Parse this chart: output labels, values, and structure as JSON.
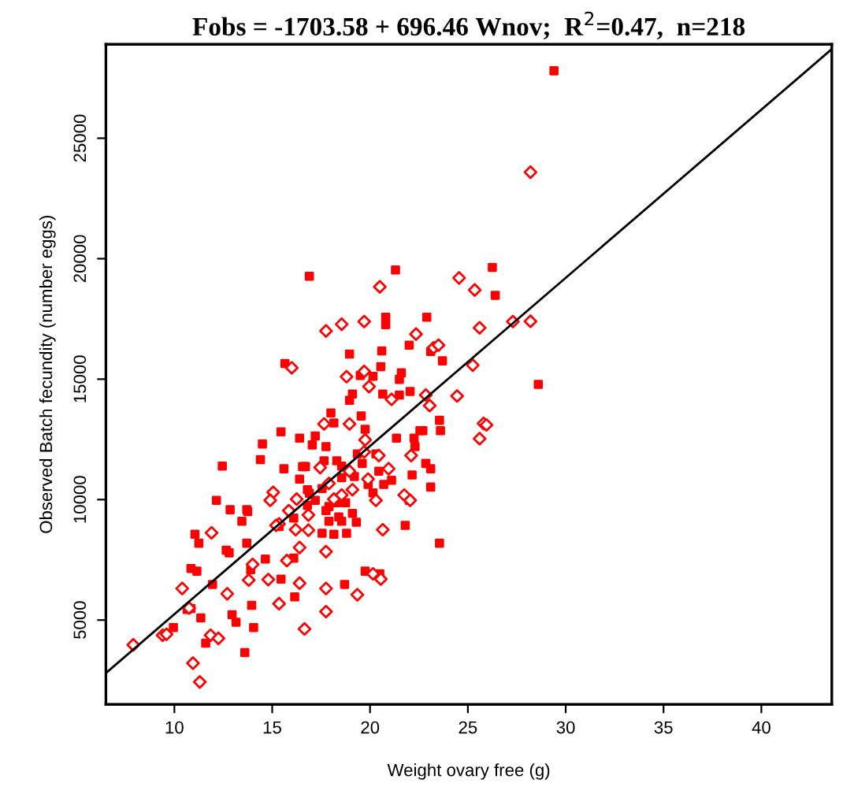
{
  "chart_data": {
    "type": "scatter",
    "title": "Fobs = -1703.58 + 696.46 Wnov;  R$^{2}$=0.47,  n=218",
    "xlabel": "Weight ovary free (g)",
    "ylabel": "Observed Batch fecundity (number eggs)",
    "xlim": [
      6.5,
      43.6
    ],
    "ylim": [
      1500,
      28900
    ],
    "xticks": [
      10,
      15,
      20,
      25,
      30,
      35,
      40
    ],
    "yticks": [
      5000,
      10000,
      15000,
      20000,
      25000
    ],
    "grid": false,
    "legend": false,
    "series": [
      {
        "marker": "square",
        "color": "#ff0000",
        "x": [
          16.9,
          21.3,
          26.25,
          26.4,
          20.8,
          20.8,
          22.9,
          22.0,
          20.6,
          18.95,
          23.7,
          23.1,
          15.65,
          20.55,
          20.15,
          19.5,
          21.6,
          21.5,
          19.1,
          21.5,
          22.05,
          20.65,
          18.95,
          18.0,
          18.15,
          19.55,
          17.2,
          16.4,
          15.45,
          19.75,
          21.35,
          22.55,
          22.7,
          23.55,
          23.6,
          22.3,
          22.25,
          16.7,
          16.55,
          17.75,
          17.05,
          17.65,
          18.3,
          20.3,
          19.35,
          18.55,
          22.85,
          23.1,
          22.15,
          12.45,
          14.4,
          14.5,
          15.6,
          16.4,
          18.55,
          19.2,
          19.6,
          19.9,
          20.15,
          20.7,
          20.45,
          21.1,
          23.1,
          22.0,
          12.15,
          12.85,
          13.7,
          13.45,
          13.75,
          15.35,
          16.1,
          16.9,
          16.8,
          16.8,
          17.2,
          17.55,
          17.9,
          17.75,
          18.3,
          18.4,
          17.9,
          18.55,
          19.3,
          19.1,
          18.75,
          17.55,
          18.15,
          18.8,
          16.1,
          21.8,
          23.55,
          11.05,
          11.25,
          12.65,
          12.8,
          13.7,
          10.85,
          11.15,
          11.95,
          14.65,
          13.9,
          15.45,
          16.15,
          18.7,
          19.75,
          13.95,
          11.35,
          12.95,
          13.15,
          10.85,
          10.65,
          9.95,
          14.05,
          11.6,
          13.6,
          20.5,
          29.4,
          28.6
        ],
        "values": [
          19270,
          19530,
          19640,
          18480,
          17570,
          17260,
          17570,
          16410,
          16170,
          16040,
          15760,
          16150,
          15650,
          15520,
          15120,
          15150,
          15260,
          14990,
          14380,
          14340,
          14490,
          14380,
          14120,
          13600,
          13180,
          13470,
          12640,
          12550,
          12810,
          12920,
          12550,
          12860,
          12860,
          13290,
          12860,
          12200,
          12550,
          11370,
          11370,
          12200,
          12270,
          11610,
          11610,
          11900,
          11900,
          11390,
          11500,
          11280,
          11020,
          11390,
          11660,
          12310,
          11280,
          10850,
          10910,
          10960,
          11500,
          10630,
          10280,
          10630,
          11180,
          10800,
          10520,
          9970,
          9970,
          9580,
          9580,
          9100,
          9500,
          8880,
          9230,
          10260,
          9760,
          10410,
          9970,
          10460,
          9710,
          9540,
          9870,
          9280,
          9100,
          9100,
          9060,
          9430,
          9870,
          8600,
          8560,
          8600,
          7570,
          8930,
          8190,
          8560,
          8190,
          7900,
          7790,
          8190,
          7140,
          7030,
          6480,
          7530,
          7090,
          6700,
          5960,
          6480,
          7030,
          5610,
          5090,
          5220,
          4910,
          5480,
          5440,
          4690,
          4690,
          4040,
          3650,
          6920,
          27800,
          14780
        ]
      },
      {
        "marker": "diamond",
        "color": "#ff0000",
        "x": [
          20.5,
          24.55,
          25.35,
          27.3,
          25.6,
          22.35,
          23.25,
          23.5,
          18.55,
          19.7,
          17.75,
          16.0,
          18.8,
          19.7,
          19.95,
          21.1,
          22.85,
          23.05,
          24.45,
          25.25,
          25.8,
          25.95,
          25.6,
          17.65,
          18.95,
          19.75,
          19.7,
          17.45,
          17.9,
          18.95,
          19.1,
          19.9,
          20.45,
          20.3,
          20.95,
          22.1,
          18.55,
          18.15,
          15.05,
          14.9,
          16.25,
          16.85,
          15.85,
          15.35,
          16.2,
          16.85,
          16.4,
          17.75,
          21.75,
          22.05,
          20.65,
          11.9,
          12.7,
          13.8,
          14.8,
          14.0,
          15.75,
          17.75,
          17.75,
          15.35,
          16.4,
          19.35,
          20.15,
          20.55,
          16.65,
          10.4,
          10.75,
          9.4,
          9.6,
          7.9,
          11.85,
          12.25,
          10.95,
          11.3,
          15.2,
          28.2,
          28.2
        ],
        "values": [
          18830,
          19200,
          18700,
          17390,
          17130,
          16870,
          16300,
          16410,
          17280,
          17390,
          17000,
          15470,
          15100,
          15320,
          14690,
          14160,
          14340,
          13900,
          14300,
          15580,
          13160,
          13100,
          12530,
          13140,
          13140,
          12480,
          11980,
          11330,
          10670,
          11180,
          10410,
          10850,
          11830,
          9970,
          11280,
          11830,
          10190,
          10020,
          10300,
          9970,
          10020,
          9360,
          9540,
          8990,
          8750,
          8730,
          8010,
          7840,
          10190,
          9970,
          8750,
          8620,
          6090,
          6660,
          6680,
          7310,
          7470,
          6310,
          5350,
          5680,
          6530,
          6050,
          6920,
          6700,
          4630,
          6310,
          5500,
          4370,
          4410,
          3970,
          4370,
          4240,
          3210,
          2430,
          8930,
          23590,
          17400
        ]
      },
      {
        "type": "line",
        "color": "#000000",
        "line_style": "solid",
        "x": [
          6.5,
          43.6
        ],
        "values": [
          2800,
          28700
        ]
      }
    ]
  }
}
